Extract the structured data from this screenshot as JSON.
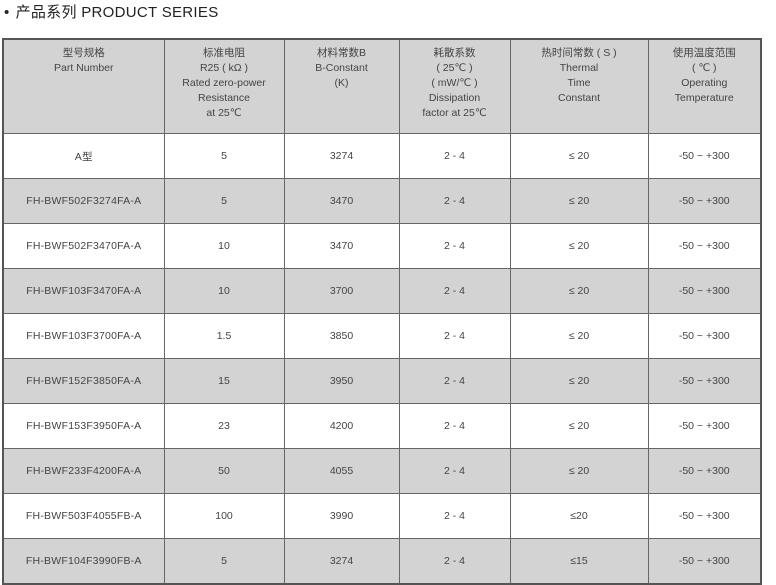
{
  "title": {
    "bullet": "•",
    "text": "产品系列 PRODUCT SERIES"
  },
  "headers": [
    {
      "lines": [
        "型号规格",
        "Part Number"
      ]
    },
    {
      "lines": [
        "标准电阻",
        "R25 ( kΩ )",
        "Rated zero-power",
        "Resistance",
        "at 25℃"
      ]
    },
    {
      "lines": [
        "材料常数B",
        "B-Constant",
        "(K)"
      ]
    },
    {
      "lines": [
        "耗散系数",
        "( 25℃ )",
        "( mW/℃ )",
        "Dissipation",
        "factor at 25℃"
      ]
    },
    {
      "lines": [
        "热时间常数 ( S )",
        "Thermal",
        "Time",
        "Constant"
      ]
    },
    {
      "lines": [
        "使用温度范围",
        "( ℃ )",
        "Operating",
        "Temperature"
      ]
    }
  ],
  "rows": [
    [
      "A型",
      "5",
      "3274",
      "2 - 4",
      "≤ 20",
      "-50 ~ +300"
    ],
    [
      "FH-BWF502F3274FA-A",
      "5",
      "3470",
      "2 - 4",
      "≤ 20",
      "-50 ~ +300"
    ],
    [
      "FH-BWF502F3470FA-A",
      "10",
      "3470",
      "2 - 4",
      "≤ 20",
      "-50 ~ +300"
    ],
    [
      "FH-BWF103F3470FA-A",
      "10",
      "3700",
      "2 - 4",
      "≤ 20",
      "-50 ~ +300"
    ],
    [
      "FH-BWF103F3700FA-A",
      "1.5",
      "3850",
      "2 - 4",
      "≤ 20",
      "-50 ~ +300"
    ],
    [
      "FH-BWF152F3850FA-A",
      "15",
      "3950",
      "2 - 4",
      "≤ 20",
      "-50 ~ +300"
    ],
    [
      "FH-BWF153F3950FA-A",
      "23",
      "4200",
      "2 - 4",
      "≤ 20",
      "-50 ~ +300"
    ],
    [
      "FH-BWF233F4200FA-A",
      "50",
      "4055",
      "2 - 4",
      "≤ 20",
      "-50 ~ +300"
    ],
    [
      "FH-BWF503F4055FB-A",
      "100",
      "3990",
      "2 - 4",
      "≤20",
      "-50 ~ +300"
    ],
    [
      "FH-BWF104F3990FB-A",
      "5",
      "3274",
      "2 - 4",
      "≤15",
      "-50 ~ +300"
    ]
  ],
  "colors": {
    "header_bg": "#d3d3d3",
    "alt_row_bg": "#d3d3d3",
    "border": "#666666"
  }
}
